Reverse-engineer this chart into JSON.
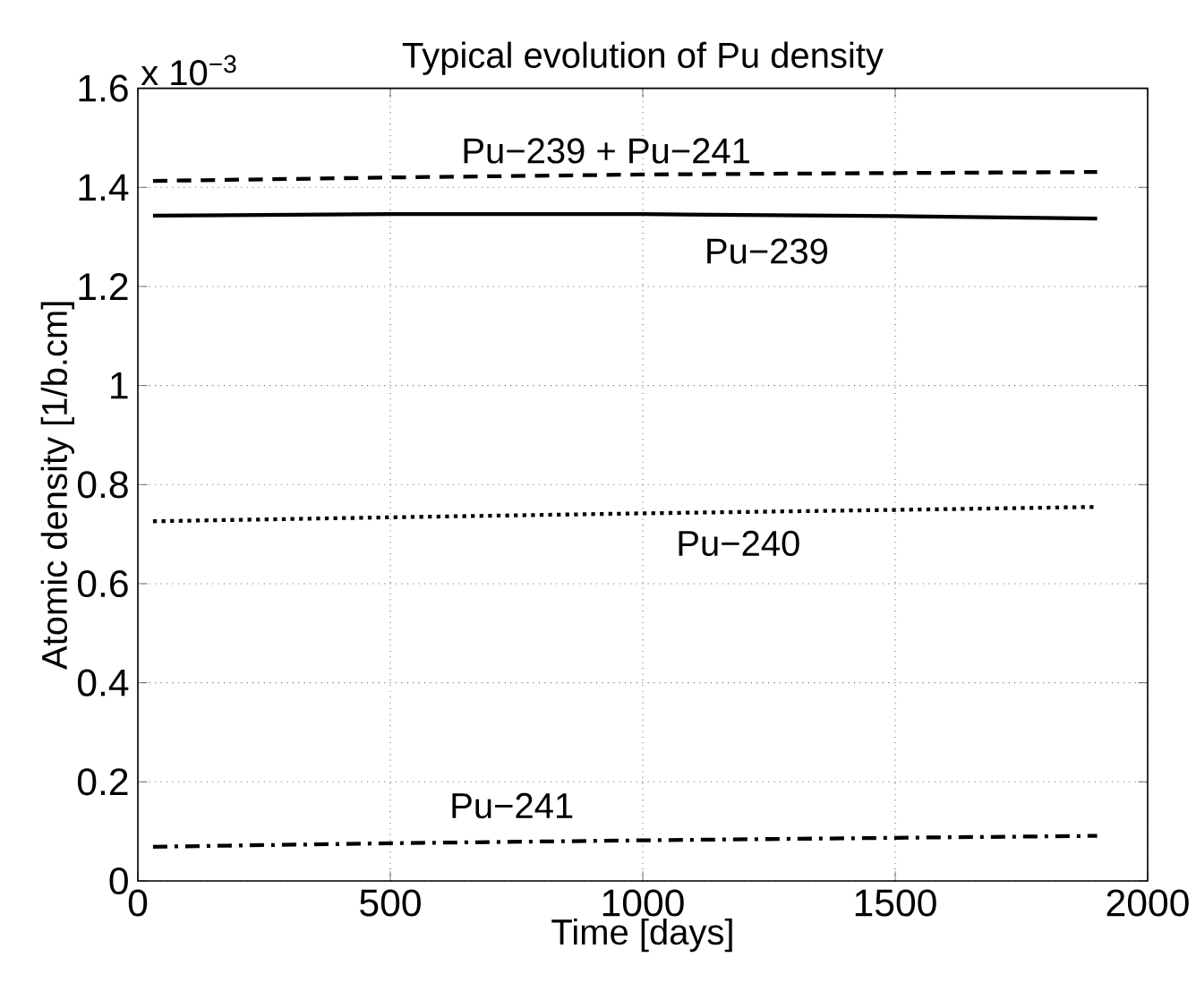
{
  "chart_data": {
    "type": "line",
    "title": "Typical evolution of Pu density",
    "xlabel": "Time [days]",
    "ylabel": "Atomic density [1/b.cm]",
    "x": [
      30,
      500,
      1000,
      1500,
      1900
    ],
    "series": [
      {
        "color": "#000000",
        "line_style": "dashed",
        "values": [
          1.413,
          1.42,
          1.426,
          1.429,
          1.431
        ]
      },
      {
        "color": "#000000",
        "line_style": "solid",
        "values": [
          1.343,
          1.346,
          1.346,
          1.342,
          1.337
        ]
      },
      {
        "color": "#000000",
        "line_style": "dotted",
        "values": [
          0.726,
          0.734,
          0.742,
          0.749,
          0.755
        ]
      },
      {
        "color": "#000000",
        "line_style": "dashdot",
        "values": [
          0.069,
          0.076,
          0.082,
          0.087,
          0.091
        ]
      }
    ],
    "annotations": [
      "x 10$^{−3}$",
      "Pu−239 + Pu−241",
      "Pu−239",
      "Pu−240",
      "Pu−241"
    ],
    "xlim": [
      0,
      2000
    ],
    "ylim": [
      0,
      1.6
    ],
    "xticks": [
      0,
      500,
      1000,
      1500,
      2000
    ],
    "yticks": [
      0,
      0.2,
      0.4,
      0.6,
      0.8,
      1,
      1.2,
      1.4,
      1.6
    ],
    "grid": true
  }
}
